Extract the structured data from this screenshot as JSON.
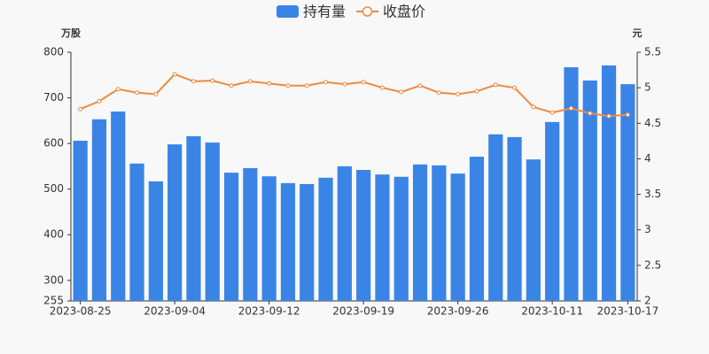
{
  "chart_data": {
    "type": "bar_line",
    "categories": [
      "2023-08-25",
      null,
      null,
      null,
      null,
      "2023-09-04",
      null,
      null,
      null,
      null,
      "2023-09-12",
      null,
      null,
      null,
      null,
      "2023-09-19",
      null,
      null,
      null,
      null,
      "2023-09-26",
      null,
      null,
      null,
      null,
      "2023-10-11",
      null,
      null,
      null,
      "2023-10-17"
    ],
    "y_unit": "万股",
    "y2_unit": "元",
    "ylim": [
      255,
      800
    ],
    "yticks": [
      255,
      300,
      400,
      500,
      600,
      700,
      800
    ],
    "y2lim": [
      2,
      5.5
    ],
    "y2ticks": [
      2,
      2.5,
      3,
      3.5,
      4,
      4.5,
      5,
      5.5
    ],
    "series": [
      {
        "name": "持有量",
        "type": "bar",
        "color": "#3a84e6",
        "values": [
          606,
          653,
          670,
          556,
          517,
          598,
          616,
          602,
          536,
          546,
          528,
          513,
          511,
          525,
          550,
          542,
          532,
          527,
          554,
          552,
          534,
          571,
          620,
          614,
          565,
          647,
          767,
          738,
          771,
          730
        ]
      },
      {
        "name": "收盘价",
        "type": "line",
        "axis": "y2",
        "color": "#ee8a3f",
        "values": [
          4.7,
          4.81,
          4.98,
          4.93,
          4.91,
          5.19,
          5.09,
          5.1,
          5.03,
          5.09,
          5.06,
          5.03,
          5.03,
          5.08,
          5.05,
          5.08,
          5.0,
          4.94,
          5.03,
          4.93,
          4.91,
          4.95,
          5.04,
          5.0,
          4.73,
          4.65,
          4.71,
          4.64,
          4.6,
          4.62
        ]
      }
    ]
  }
}
